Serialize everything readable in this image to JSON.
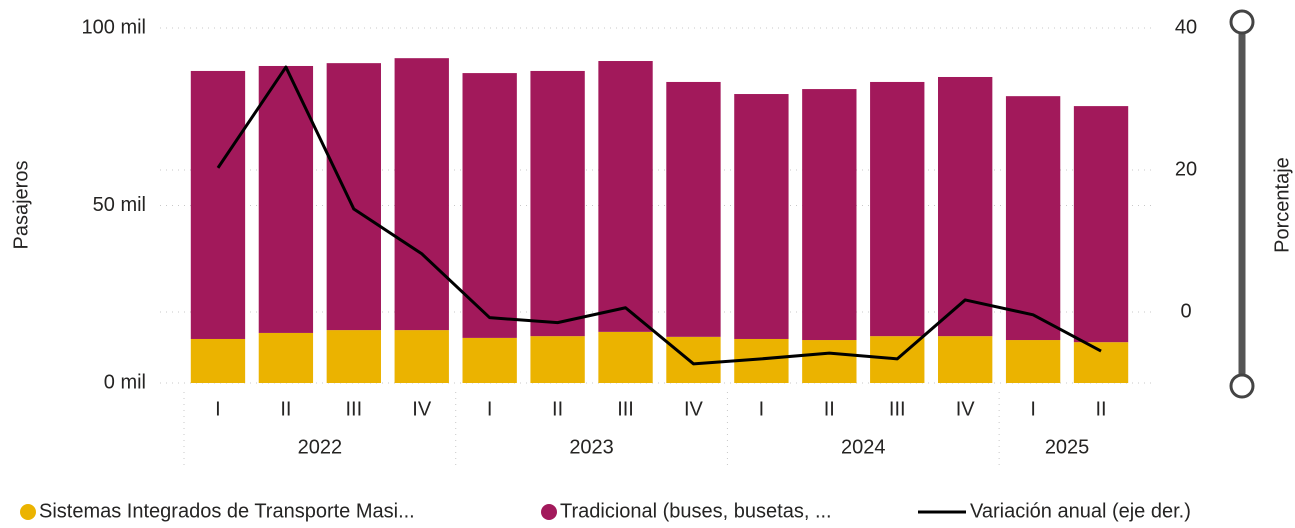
{
  "chart_data": {
    "type": "bar",
    "stacked": true,
    "y_label": "Pasajeros",
    "y2_label": "Porcentaje",
    "groups": [
      {
        "name": "2022",
        "categories": [
          "I",
          "II",
          "III",
          "IV"
        ]
      },
      {
        "name": "2023",
        "categories": [
          "I",
          "II",
          "III",
          "IV"
        ]
      },
      {
        "name": "2024",
        "categories": [
          "I",
          "II",
          "III",
          "IV"
        ]
      },
      {
        "name": "2025",
        "categories": [
          "I",
          "II"
        ]
      }
    ],
    "series": [
      {
        "name": "Sistemas Integrados de Transporte Masi...",
        "type": "bar",
        "color": "#EBB300",
        "values": [
          12400,
          14100,
          14900,
          14900,
          12700,
          13200,
          14400,
          13000,
          12400,
          12100,
          13200,
          13200,
          12100,
          11500
        ]
      },
      {
        "name": "Tradicional (buses, busetas, ...",
        "type": "bar",
        "color": "#A2195B",
        "values": [
          75500,
          75200,
          75200,
          76600,
          74600,
          74700,
          76300,
          71800,
          69000,
          70700,
          71600,
          73000,
          68700,
          66500
        ]
      },
      {
        "name": "Variación anual (eje der.)",
        "type": "line",
        "axis": "y2",
        "color": "#000000",
        "values": [
          20.3,
          34.5,
          14.5,
          8.2,
          -0.8,
          -1.5,
          0.6,
          -7.3,
          -6.6,
          -5.8,
          -6.6,
          1.7,
          -0.4,
          -5.5
        ]
      }
    ],
    "ylim": [
      0,
      100000
    ],
    "yticks": [
      {
        "value": 0,
        "label": "0 mil"
      },
      {
        "value": 50000,
        "label": "50 mil"
      },
      {
        "value": 100000,
        "label": "100 mil"
      }
    ],
    "y2lim": [
      -10,
      40
    ],
    "y2ticks": [
      0,
      20,
      40
    ],
    "grid": true
  }
}
